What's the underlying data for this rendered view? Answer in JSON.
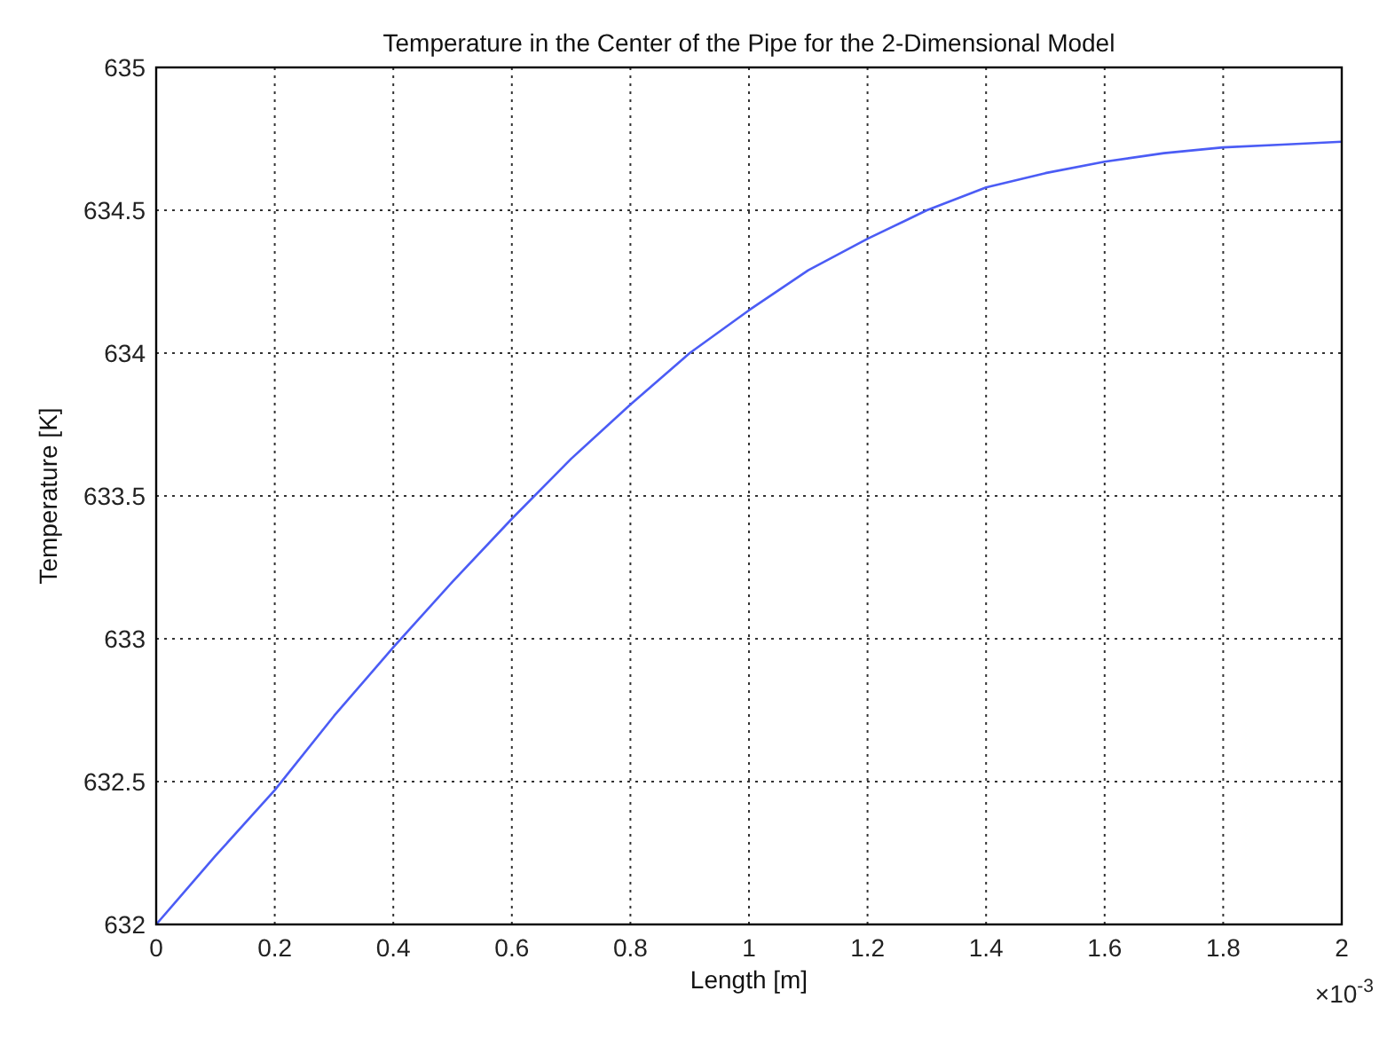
{
  "chart_data": {
    "type": "line",
    "title": "Temperature in the Center of the Pipe for the 2-Dimensional Model",
    "xlabel": "Length [m]",
    "ylabel": "Temperature [K]",
    "x": [
      0,
      0.1,
      0.2,
      0.3,
      0.4,
      0.5,
      0.6,
      0.7,
      0.8,
      0.9,
      1.0,
      1.1,
      1.2,
      1.3,
      1.4,
      1.5,
      1.6,
      1.7,
      1.8,
      1.9,
      2.0
    ],
    "series": [
      {
        "color": "#4b5cf5",
        "values": [
          632,
          632.24,
          632.47,
          632.73,
          632.97,
          633.2,
          633.42,
          633.63,
          633.82,
          634.0,
          634.15,
          634.29,
          634.4,
          634.5,
          634.58,
          634.63,
          634.67,
          634.7,
          634.72,
          634.73,
          634.74
        ]
      }
    ],
    "xlim": [
      0,
      2
    ],
    "xticks": [
      0,
      0.2,
      0.4,
      0.6,
      0.8,
      1,
      1.2,
      1.4,
      1.6,
      1.8,
      2
    ],
    "ylim": [
      632,
      635
    ],
    "yticks": [
      632,
      632.5,
      633,
      633.5,
      634,
      634.5,
      635
    ],
    "grid": true,
    "line_style": "solid",
    "marker": "none",
    "annotations": [
      "×10$^{-3}$"
    ]
  }
}
